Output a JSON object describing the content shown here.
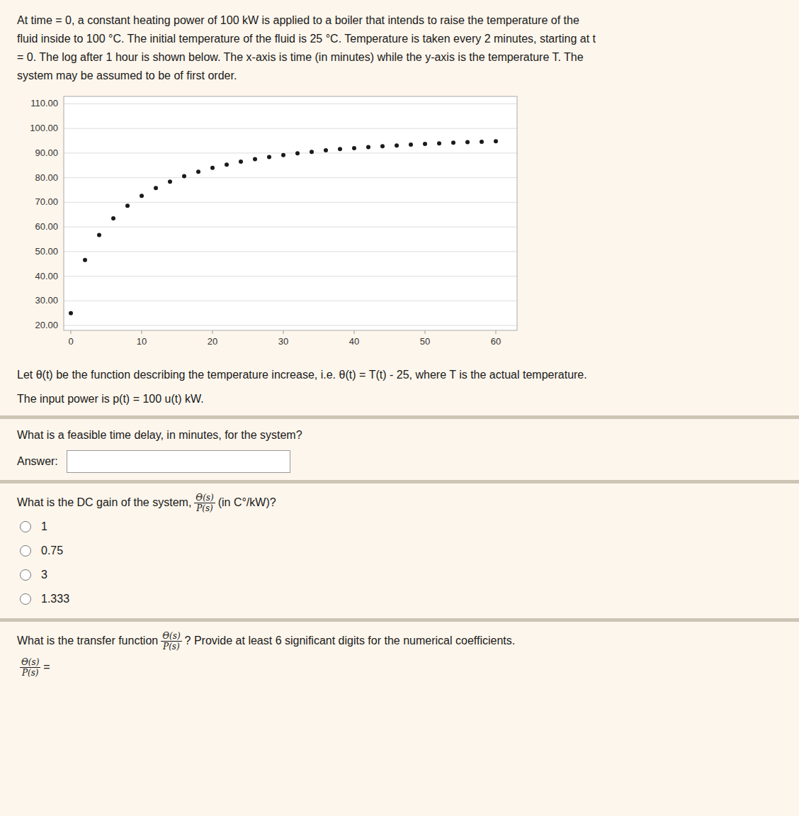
{
  "chart_data": {
    "type": "scatter",
    "x": [
      0,
      2,
      4,
      6,
      8,
      10,
      12,
      14,
      16,
      18,
      20,
      22,
      24,
      26,
      28,
      30,
      32,
      34,
      36,
      38,
      40,
      42,
      44,
      46,
      48,
      50,
      52,
      54,
      56,
      58,
      60
    ],
    "values": [
      25.0,
      46.6,
      56.7,
      63.5,
      68.6,
      72.6,
      75.8,
      78.4,
      80.6,
      82.4,
      84.0,
      85.3,
      86.5,
      87.5,
      88.4,
      89.2,
      89.9,
      90.5,
      91.1,
      91.6,
      92.0,
      92.4,
      92.8,
      93.1,
      93.4,
      93.7,
      93.9,
      94.2,
      94.4,
      94.6,
      94.8
    ],
    "color": "#1a1a1a",
    "xlim": [
      -1,
      63
    ],
    "ylim": [
      18,
      113
    ],
    "xticks": [
      0,
      10,
      20,
      30,
      40,
      50,
      60
    ],
    "yticks": [
      {
        "value": 20,
        "label": "20.00"
      },
      {
        "value": 30,
        "label": "30.00"
      },
      {
        "value": 40,
        "label": "40.00"
      },
      {
        "value": 50,
        "label": "50.00"
      },
      {
        "value": 60,
        "label": "60.00"
      },
      {
        "value": 70,
        "label": "70.00"
      },
      {
        "value": 80,
        "label": "80.00"
      },
      {
        "value": 90,
        "label": "90.00"
      },
      {
        "value": 100,
        "label": "100.00"
      },
      {
        "value": 110,
        "label": "110.00"
      }
    ],
    "grid": true
  },
  "page": {
    "header_lines": [
      "At time = 0, a constant heating power of 100 kW is applied to a boiler that intends to raise the temperature of the",
      "fluid inside to 100 °C. The initial temperature of the fluid is 25 °C. Temperature is taken every 2 minutes, starting at t",
      "= 0. The log after 1 hour is shown below. The x-axis is time (in minutes) while the y-axis is the temperature T. The",
      "system may be assumed to be of first order."
    ],
    "intro_lines": [
      "Let θ(t) be the function describing the temperature increase, i.e. θ(t) = T(t) - 25, where T is the actual temperature.",
      "The input power is p(t) = 100 u(t) kW."
    ],
    "delay_question": "What is a feasible time delay, in minutes, for the system?",
    "answer_label": "Answer:",
    "gain_question": "What is the DC gain of the system,",
    "fraction_numerator": "Θ(s)",
    "fraction_denominator": "P(s)",
    "gain_unit": "(in C°/kW)?",
    "gain_options": [
      "1",
      "0.75",
      "3",
      "1.333"
    ],
    "tf_question": "What is the transfer function",
    "tf_question_end": "? Provide at least 6 significant digits for the numerical coefficients.",
    "tf_equals": "="
  }
}
